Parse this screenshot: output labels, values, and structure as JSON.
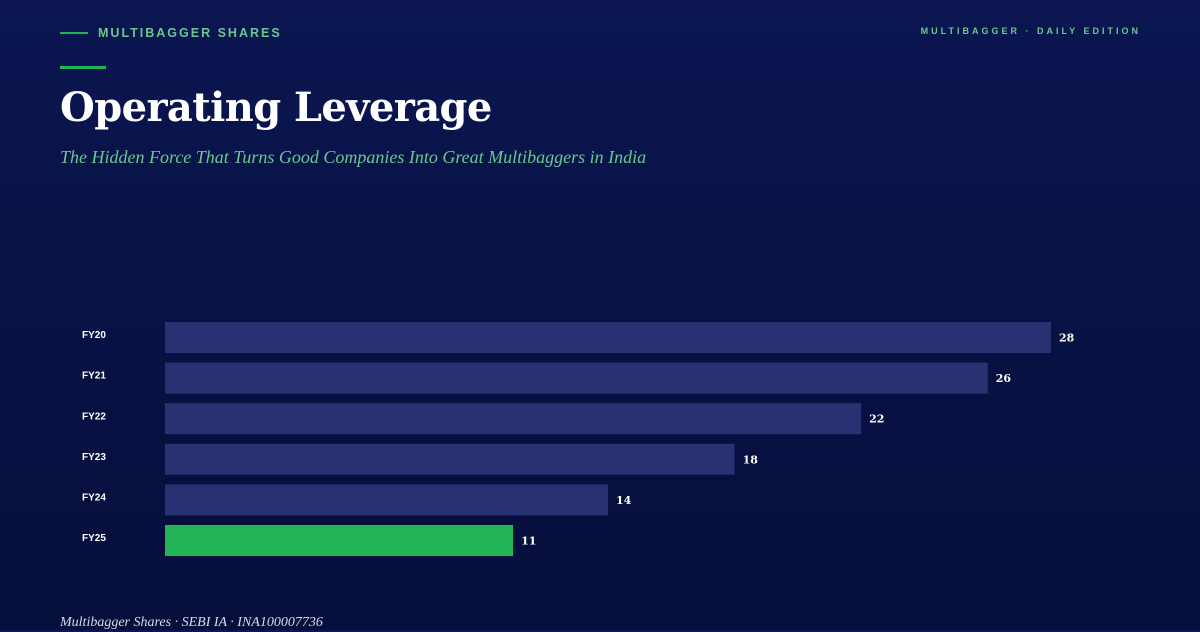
{
  "header": {
    "brand": "MULTIBAGGER SHARES",
    "edition": "MULTIBAGGER · DAILY EDITION"
  },
  "title": "Operating Leverage",
  "subtitle": "The Hidden Force That Turns Good Companies Into Great Multibaggers in India",
  "footer": "Multibagger Shares · SEBI IA · INA100007736",
  "colors": {
    "background": "#081245",
    "accent": "#22b455",
    "bar": "#283272",
    "highlight_bar": "#22b455",
    "text_green": "#6cc78f"
  },
  "chart_data": {
    "type": "bar",
    "orientation": "horizontal",
    "categories": [
      "FY20",
      "FY21",
      "FY22",
      "FY23",
      "FY24",
      "FY25"
    ],
    "values": [
      28,
      26,
      22,
      18,
      14,
      11
    ],
    "highlight_category": "FY25",
    "title": "",
    "xlabel": "",
    "ylabel": "",
    "xlim": [
      0,
      28
    ],
    "grid": false,
    "legend": "none",
    "data_labels": true
  }
}
